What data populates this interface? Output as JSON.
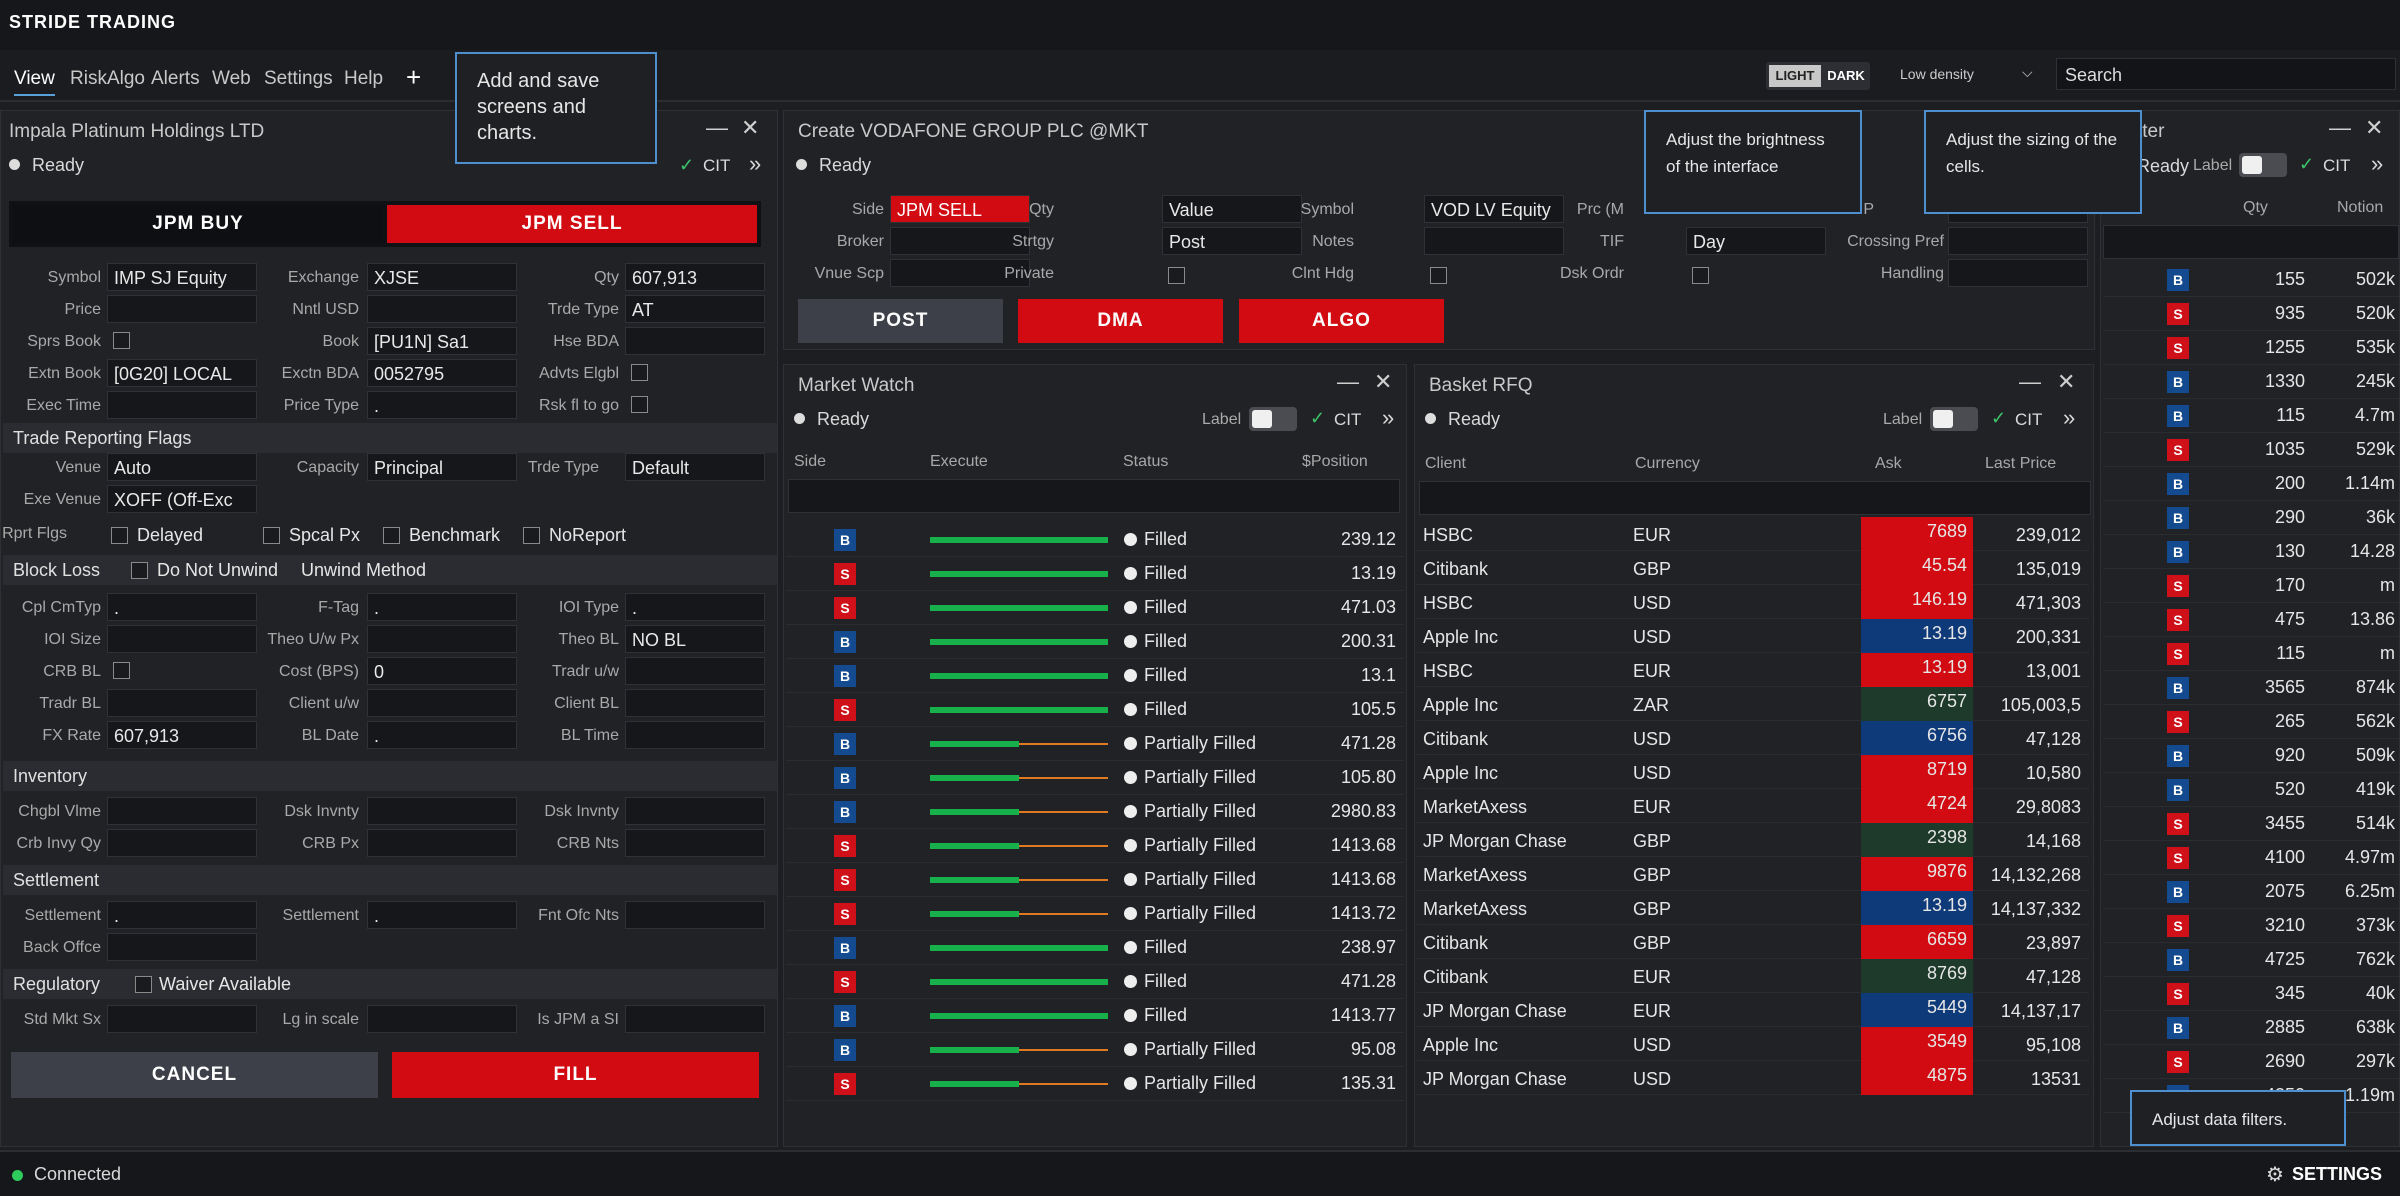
{
  "app": {
    "title": "STRIDE TRADING"
  },
  "menu": {
    "items": [
      "View",
      "RiskAlgo",
      "Alerts",
      "Web",
      "Settings",
      "Help"
    ],
    "add": "+"
  },
  "topright": {
    "light": "LIGHT",
    "dark": "DARK",
    "density": "Low density",
    "search_placeholder": "Search"
  },
  "tips": {
    "screens": "Add and save screens and charts.",
    "brightness": "Adjust the brightness of the interface",
    "sizing": "Adjust the sizing of the cells.",
    "filters": "Adjust data filters."
  },
  "left": {
    "title": "Impala Platinum Holdings LTD",
    "ready": "Ready",
    "cit": "CIT",
    "buy": "JPM BUY",
    "sell": "JPM SELL",
    "rows": [
      [
        "Symbol",
        "IMP SJ Equity",
        "Exchange",
        "XJSE",
        "Qty",
        "607,913"
      ],
      [
        "Price",
        "",
        "Nntl USD",
        "",
        "Trde Type",
        "AT"
      ],
      [
        "Sprs Book",
        "",
        "Book",
        "[PU1N] Sa1",
        "Hse BDA",
        ""
      ],
      [
        "Extn Book",
        "[0G20] LOCAL",
        "Exctn BDA",
        "0052795",
        "Advts Elgbl",
        ""
      ],
      [
        "Exec Time",
        "",
        "Price Type",
        ".",
        "Rsk fl to go",
        ""
      ]
    ],
    "trf": {
      "header": "Trade Reporting Flags",
      "venue_l": "Venue",
      "venue": "Auto",
      "cap_l": "Capacity",
      "cap": "Principal",
      "trde_l": "Trde Type",
      "trde": "Default",
      "exev_l": "Exe Venue",
      "exev": "XOFF (Off-Exc",
      "rprt_l": "Rprt Flgs",
      "flags": [
        "Delayed",
        "Spcal Px",
        "Benchmark",
        "NoReport"
      ]
    },
    "bl": {
      "header": "Block Loss",
      "dnu": "Do Not Unwind",
      "uw": "Unwind  Method",
      "rows": [
        [
          "Cpl CmTyp",
          ".",
          "F-Tag",
          ".",
          "IOI Type",
          "."
        ],
        [
          "IOI Size",
          "",
          "Theo U/w Px",
          "",
          "Theo BL",
          "NO BL"
        ],
        [
          "CRB BL",
          "",
          "Cost (BPS)",
          "0",
          "Tradr u/w",
          ""
        ],
        [
          "Tradr BL",
          "",
          "Client u/w",
          "",
          "Client BL",
          ""
        ],
        [
          "FX Rate",
          "607,913",
          "BL Date",
          ".",
          "BL Time",
          ""
        ]
      ]
    },
    "inv": {
      "header": "Inventory",
      "rows": [
        [
          "Chgbl Vlme",
          "",
          "Dsk Invnty",
          "",
          "Dsk Invnty",
          ""
        ],
        [
          "Crb Invy Qy",
          "",
          "CRB Px",
          "",
          "CRB Nts",
          ""
        ]
      ]
    },
    "stl": {
      "header": "Settlement",
      "rows": [
        [
          "Settlement",
          ".",
          "Settlement",
          ".",
          "Fnt Ofc Nts",
          ""
        ],
        [
          "Back Offce",
          "",
          "",
          "",
          "",
          ""
        ]
      ]
    },
    "reg": {
      "header": "Regulatory",
      "waiver": "Waiver Available",
      "rows": [
        [
          "Std Mkt Sx",
          "",
          "Lg in scale",
          "",
          "Is JPM a SI",
          ""
        ]
      ]
    },
    "cancel": "CANCEL",
    "fill": "FILL"
  },
  "order": {
    "title": "Create VODAFONE GROUP PLC @MKT",
    "ready": "Ready",
    "side_l": "Side",
    "side": "JPM SELL",
    "qty_l": "Qty",
    "qty": "Value",
    "sym_l": "Symbol",
    "sym": "VOD LV Equity",
    "prc_l": "Prc (M",
    "sson_l": "Sson P",
    "broker_l": "Broker",
    "strtgy_l": "Strtgy",
    "strtgy": "Post",
    "notes_l": "Notes",
    "tif_l": "TIF",
    "tif": "Day",
    "cross_l": "Crossing Pref",
    "vnue_l": "Vnue Scp",
    "private_l": "Private",
    "clnt_l": "Clnt Hdg",
    "dsk_l": "Dsk Ordr",
    "handling_l": "Handling",
    "post": "POST",
    "dma": "DMA",
    "algo": "ALGO"
  },
  "mw": {
    "title": "Market Watch",
    "ready": "Ready",
    "label": "Label",
    "cit": "CIT",
    "cols": [
      "Side",
      "Execute",
      "Status",
      "$Position"
    ],
    "rows": [
      [
        "B",
        1.0,
        "Filled",
        "239.12"
      ],
      [
        "S",
        1.0,
        "Filled",
        "13.19"
      ],
      [
        "S",
        1.0,
        "Filled",
        "471.03"
      ],
      [
        "B",
        1.0,
        "Filled",
        "200.31"
      ],
      [
        "B",
        1.0,
        "Filled",
        "13.1"
      ],
      [
        "S",
        1.0,
        "Filled",
        "105.5"
      ],
      [
        "B",
        0.5,
        "Partially Filled",
        "471.28"
      ],
      [
        "B",
        0.5,
        "Partially Filled",
        "105.80"
      ],
      [
        "B",
        0.5,
        "Partially Filled",
        "2980.83"
      ],
      [
        "S",
        0.5,
        "Partially Filled",
        "1413.68"
      ],
      [
        "S",
        0.5,
        "Partially Filled",
        "1413.68"
      ],
      [
        "S",
        0.5,
        "Partially Filled",
        "1413.72"
      ],
      [
        "B",
        1.0,
        "Filled",
        "238.97"
      ],
      [
        "S",
        1.0,
        "Filled",
        "471.28"
      ],
      [
        "B",
        1.0,
        "Filled",
        "1413.77"
      ],
      [
        "B",
        0.5,
        "Partially Filled",
        "95.08"
      ],
      [
        "S",
        0.5,
        "Partially Filled",
        "135.31"
      ]
    ]
  },
  "rfq": {
    "title": "Basket RFQ",
    "ready": "Ready",
    "label": "Label",
    "cit": "CIT",
    "cols": [
      "Client",
      "Currency",
      "Ask",
      "Last Price"
    ],
    "rows": [
      [
        "HSBC",
        "EUR",
        "7689",
        "239,012",
        "red"
      ],
      [
        "Citibank",
        "GBP",
        "45.54",
        "135,019",
        "red"
      ],
      [
        "HSBC",
        "USD",
        "146.19",
        "471,303",
        "red"
      ],
      [
        "Apple Inc",
        "USD",
        "13.19",
        "200,331",
        "blue"
      ],
      [
        "HSBC",
        "EUR",
        "13.19",
        "13,001",
        "red"
      ],
      [
        "Apple Inc",
        "ZAR",
        "6757",
        "105,003,5",
        "green"
      ],
      [
        "Citibank",
        "USD",
        "6756",
        "47,128",
        "blue"
      ],
      [
        "Apple Inc",
        "USD",
        "8719",
        "10,580",
        "red"
      ],
      [
        "MarketAxess",
        "EUR",
        "4724",
        "29,8083",
        "red"
      ],
      [
        "JP Morgan Chase",
        "GBP",
        "2398",
        "14,168",
        "green"
      ],
      [
        "MarketAxess",
        "GBP",
        "9876",
        "14,132,268",
        "red"
      ],
      [
        "MarketAxess",
        "GBP",
        "13.19",
        "14,137,332",
        "blue"
      ],
      [
        "Citibank",
        "GBP",
        "6659",
        "23,897",
        "red"
      ],
      [
        "Citibank",
        "EUR",
        "8769",
        "47,128",
        "green"
      ],
      [
        "JP Morgan Chase",
        "EUR",
        "5449",
        "14,137,17",
        "blue"
      ],
      [
        "Apple Inc",
        "USD",
        "3549",
        "95,108",
        "red"
      ],
      [
        "JP Morgan Chase",
        "USD",
        "4875",
        "13531",
        "red"
      ]
    ],
    "colors": {
      "red": "#d20a11",
      "blue": "#0f3a7a",
      "green": "#1e3a2a"
    }
  },
  "right": {
    "title": "tter",
    "ready": "Ready",
    "label": "Label",
    "cit": "CIT",
    "cols": [
      "Qty",
      "Notion"
    ],
    "rows": [
      [
        "B",
        "155",
        "502k"
      ],
      [
        "S",
        "935",
        "520k"
      ],
      [
        "S",
        "1255",
        "535k"
      ],
      [
        "B",
        "1330",
        "245k"
      ],
      [
        "B",
        "115",
        "4.7m"
      ],
      [
        "S",
        "1035",
        "529k"
      ],
      [
        "B",
        "200",
        "1.14m"
      ],
      [
        "B",
        "290",
        "36k"
      ],
      [
        "B",
        "130",
        "14.28"
      ],
      [
        "S",
        "170",
        "m"
      ],
      [
        "S",
        "475",
        "13.86"
      ],
      [
        "S",
        "115",
        "m"
      ],
      [
        "B",
        "3565",
        "874k"
      ],
      [
        "S",
        "265",
        "562k"
      ],
      [
        "B",
        "920",
        "509k"
      ],
      [
        "B",
        "520",
        "419k"
      ],
      [
        "S",
        "3455",
        "514k"
      ],
      [
        "S",
        "4100",
        "4.97m"
      ],
      [
        "B",
        "2075",
        "6.25m"
      ],
      [
        "S",
        "3210",
        "373k"
      ],
      [
        "B",
        "4725",
        "762k"
      ],
      [
        "S",
        "345",
        "40k"
      ],
      [
        "B",
        "2885",
        "638k"
      ],
      [
        "S",
        "2690",
        "297k"
      ],
      [
        "B",
        "4350",
        "1.19m"
      ]
    ]
  },
  "status": {
    "connected": "Connected",
    "settings": "SETTINGS"
  }
}
